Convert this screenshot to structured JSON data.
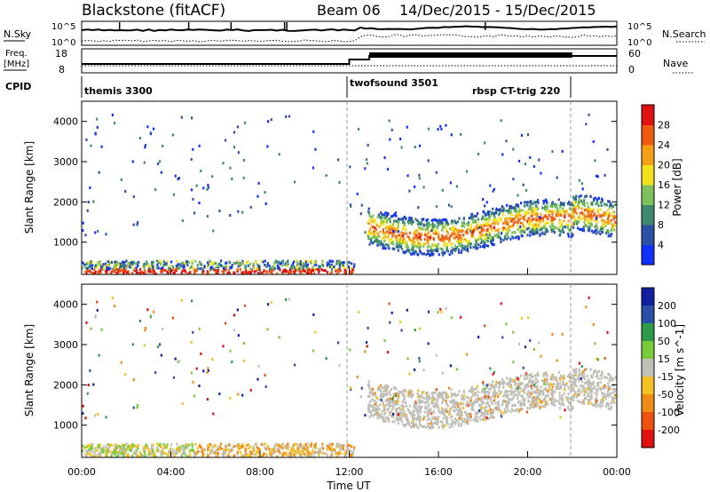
{
  "header": {
    "title": "Blackstone (fitACF)",
    "beam": "Beam 06",
    "dates": "14/Dec/2015 - 15/Dec/2015"
  },
  "strip": {
    "nsky_label": "N.Sky",
    "nsky_ticks": [
      "10^5",
      "10^0"
    ],
    "nsearch_label": "N.Search",
    "nsearch_ticks": [
      "10^5",
      "10^0"
    ],
    "freq_label_1": "Freq.",
    "freq_label_2": "[MHz]",
    "freq_ticks": [
      "18",
      "8"
    ],
    "nave_label": "Nave",
    "nave_ticks": [
      "60",
      "0"
    ],
    "cpid_label": "CPID",
    "cpid_modes": [
      {
        "label": "themis 3300",
        "start_h": 0
      },
      {
        "label": "twofsound 3501",
        "start_h": 12
      },
      {
        "label": "rbsp CT-trig 220",
        "start_h": 22
      }
    ]
  },
  "chart_data": [
    {
      "type": "heatmap",
      "title": "Power",
      "ylabel": "Slant Range [km]",
      "xlabel": "Time UT",
      "xlim_hours": [
        0,
        24
      ],
      "ylim": [
        200,
        4500
      ],
      "yticks": [
        "1000",
        "2000",
        "3000",
        "4000"
      ],
      "colorbar": {
        "label": "Power [dB]",
        "ticks": [
          "4",
          "8",
          "12",
          "16",
          "20",
          "24",
          "28"
        ],
        "colors": [
          "#1030ff",
          "#2a50a8",
          "#3c8a6e",
          "#7ec05a",
          "#f2e21a",
          "#f5a014",
          "#ef5a10",
          "#e01010"
        ]
      }
    },
    {
      "type": "heatmap",
      "title": "Velocity",
      "ylabel": "Slant Range [km]",
      "xlabel": "Time UT",
      "xlim_hours": [
        0,
        24
      ],
      "ylim": [
        200,
        4500
      ],
      "yticks": [
        "1000",
        "2000",
        "3000",
        "4000"
      ],
      "colorbar": {
        "label": "Velocity [m s^-1]",
        "ticks": [
          "200",
          "100",
          "50",
          "15",
          "-15",
          "-50",
          "-100",
          "-200"
        ],
        "colors": [
          "#1020a0",
          "#2a4fa8",
          "#2e9a4a",
          "#78cc3a",
          "#c0c0b8",
          "#f5c022",
          "#f08a14",
          "#ef5010",
          "#e01010"
        ]
      }
    }
  ],
  "xaxis": {
    "ticks": [
      "00:00",
      "04:00",
      "08:00",
      "12:00",
      "16:00",
      "20:00",
      "00:00"
    ],
    "label": "Time UT"
  }
}
